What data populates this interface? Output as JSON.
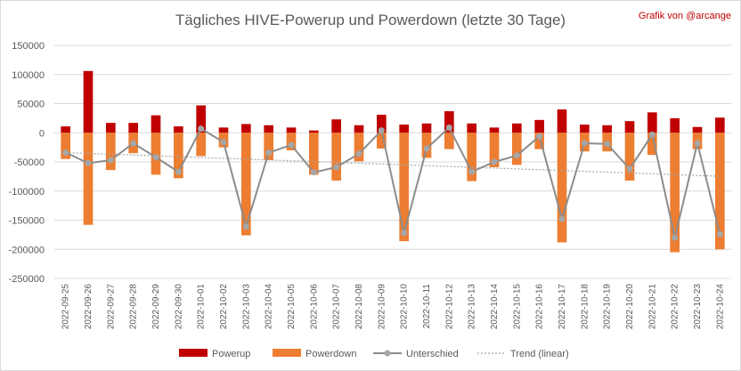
{
  "chart_data": {
    "type": "bar",
    "title": "Tägliches HIVE-Powerup und Powerdown (letzte 30 Tage)",
    "credit": "Grafik von @arcange",
    "categories": [
      "2022-09-25",
      "2022-09-26",
      "2022-09-27",
      "2022-09-28",
      "2022-09-29",
      "2022-09-30",
      "2022-10-01",
      "2022-10-02",
      "2022-10-03",
      "2022-10-04",
      "2022-10-05",
      "2022-10-06",
      "2022-10-07",
      "2022-10-08",
      "2022-10-09",
      "2022-10-10",
      "2022-10-11",
      "2022-10-12",
      "2022-10-13",
      "2022-10-14",
      "2022-10-15",
      "2022-10-16",
      "2022-10-17",
      "2022-10-18",
      "2022-10-19",
      "2022-10-20",
      "2022-10-21",
      "2022-10-22",
      "2022-10-23",
      "2022-10-24"
    ],
    "ylim": [
      -250000,
      150000
    ],
    "yticks": [
      150000,
      100000,
      50000,
      0,
      -50000,
      -100000,
      -150000,
      -200000,
      -250000
    ],
    "ytick_labels": [
      "150000",
      "100000",
      "50000",
      "0",
      "-50000",
      "-100000",
      "-150000",
      "-200000",
      "-250000"
    ],
    "grid": true,
    "legend_position": "bottom",
    "series": [
      {
        "name": "Powerup",
        "type": "bar",
        "color": "#c00000",
        "values": [
          11000,
          106000,
          17000,
          17000,
          30000,
          11000,
          47000,
          9000,
          15000,
          13000,
          9000,
          4000,
          23000,
          13000,
          31000,
          14000,
          16000,
          37000,
          16000,
          9000,
          16000,
          22000,
          40000,
          14000,
          13000,
          20000,
          35000,
          25000,
          10000,
          26000
        ]
      },
      {
        "name": "Powerdown",
        "type": "bar",
        "color": "#ed7d31",
        "values": [
          -45000,
          -158000,
          -64000,
          -35000,
          -72000,
          -78000,
          -40000,
          -25000,
          -176000,
          -47000,
          -30000,
          -72000,
          -82000,
          -49000,
          -27000,
          -186000,
          -43000,
          -28000,
          -83000,
          -59000,
          -55000,
          -28000,
          -188000,
          -32000,
          -32000,
          -82000,
          -38000,
          -205000,
          -28000,
          -200000
        ]
      },
      {
        "name": "Unterschied",
        "type": "line",
        "color": "#8c8c8c",
        "values": [
          -34000,
          -52000,
          -47000,
          -18000,
          -42000,
          -67000,
          7000,
          -16000,
          -161000,
          -34000,
          -21000,
          -68000,
          -59000,
          -36000,
          4000,
          -172000,
          -27000,
          9000,
          -67000,
          -50000,
          -39000,
          -6000,
          -148000,
          -18000,
          -19000,
          -62000,
          -3000,
          -180000,
          -18000,
          -174000
        ]
      },
      {
        "name": "Trend (linear)",
        "type": "line",
        "color": "#a6a6a6",
        "values": [
          -34000,
          -35400,
          -36800,
          -38200,
          -39600,
          -41000,
          -42400,
          -43800,
          -45200,
          -46600,
          -48000,
          -49400,
          -50800,
          -52200,
          -53600,
          -55000,
          -56400,
          -57800,
          -59200,
          -60600,
          -62000,
          -63400,
          -64800,
          -66200,
          -67600,
          -69000,
          -70400,
          -71800,
          -73200,
          -74600
        ]
      }
    ]
  }
}
